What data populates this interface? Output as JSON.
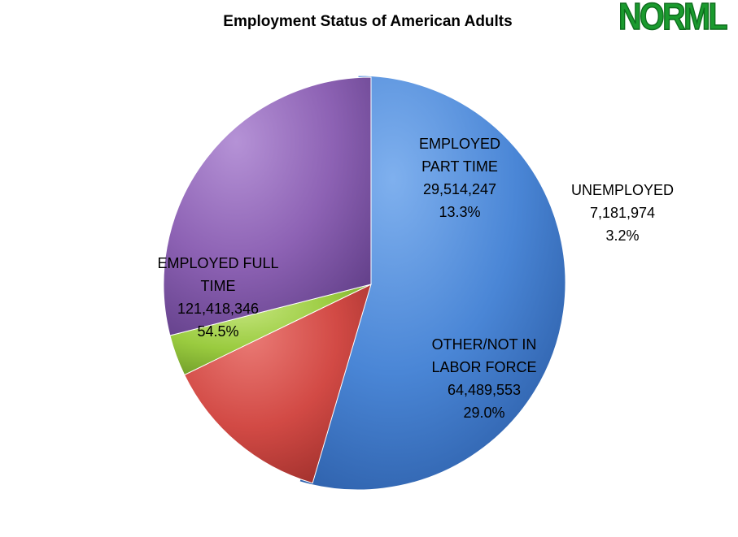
{
  "chart_data": {
    "type": "pie",
    "title": "Employment Status of American Adults",
    "logo_text": "NORML",
    "slices": [
      {
        "name": "EMPLOYED FULL TIME",
        "label_lines": [
          "EMPLOYED FULL",
          "TIME"
        ],
        "value": 121418346,
        "value_text": "121,418,346",
        "percent": 54.5,
        "percent_text": "54.5%",
        "color": "#4a86d6",
        "dark": "#2c5ea8",
        "light": "#7fb0ee",
        "exploded": true
      },
      {
        "name": "EMPLOYED PART TIME",
        "label_lines": [
          "EMPLOYED",
          "PART TIME"
        ],
        "value": 29514247,
        "value_text": "29,514,247",
        "percent": 13.3,
        "percent_text": "13.3%",
        "color": "#d24a45",
        "dark": "#a0302c",
        "light": "#ea7b76",
        "exploded": false
      },
      {
        "name": "UNEMPLOYED",
        "label_lines": [
          "UNEMPLOYED"
        ],
        "value": 7181974,
        "value_text": "7,181,974",
        "percent": 3.2,
        "percent_text": "3.2%",
        "color": "#9acb3f",
        "dark": "#6e9a28",
        "light": "#c4e57d",
        "exploded": false
      },
      {
        "name": "OTHER/NOT IN LABOR FORCE",
        "label_lines": [
          "OTHER/NOT IN",
          "LABOR FORCE"
        ],
        "value": 64489553,
        "value_text": "64,489,553",
        "percent": 29.0,
        "percent_text": "29.0%",
        "color": "#8d62b4",
        "dark": "#63408a",
        "light": "#b592d6",
        "exploded": false
      }
    ],
    "legend": "none"
  }
}
